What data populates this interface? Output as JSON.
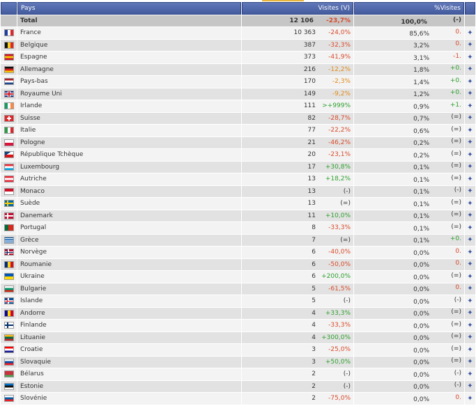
{
  "header": {
    "col_country": "Pays",
    "col_visits": "Visites (V)",
    "col_percent": "%Visites"
  },
  "total": {
    "label": "Total",
    "visits": "12 106",
    "evo": "-23,7%",
    "pct": "100,0%",
    "pct_evo": "(-)"
  },
  "rows": [
    {
      "country": "France",
      "visits": "10 363",
      "evo": "-24,0%",
      "evo_cls": "neg",
      "pct": "85,6%",
      "pct_evo": "0.",
      "pct_evo_cls": "neg",
      "flag": "france",
      "colors": [
        "#1d3fa0",
        "#ffffff",
        "#e0262b"
      ],
      "dir": "v"
    },
    {
      "country": "Belgique",
      "visits": "387",
      "evo": "-32,3%",
      "evo_cls": "neg",
      "pct": "3,2%",
      "pct_evo": "0.",
      "pct_evo_cls": "neg",
      "flag": "belgium",
      "colors": [
        "#111111",
        "#f4d21f",
        "#e0262b"
      ],
      "dir": "v"
    },
    {
      "country": "Espagne",
      "visits": "373",
      "evo": "-41,9%",
      "evo_cls": "neg",
      "pct": "3,1%",
      "pct_evo": "-1.",
      "pct_evo_cls": "neg",
      "flag": "spain",
      "colors": [
        "#c8102e",
        "#f7c300",
        "#c8102e"
      ],
      "dir": "h"
    },
    {
      "country": "Allemagne",
      "visits": "216",
      "evo": "-12,2%",
      "evo_cls": "warn",
      "pct": "1,8%",
      "pct_evo": "+0.",
      "pct_evo_cls": "pos",
      "flag": "germany",
      "colors": [
        "#111111",
        "#dd1f1f",
        "#f6c700"
      ],
      "dir": "h"
    },
    {
      "country": "Pays-bas",
      "visits": "170",
      "evo": "-2,3%",
      "evo_cls": "warn",
      "pct": "1,4%",
      "pct_evo": "+0.",
      "pct_evo_cls": "pos",
      "flag": "netherlands",
      "colors": [
        "#ae1c28",
        "#ffffff",
        "#21468b"
      ],
      "dir": "h"
    },
    {
      "country": "Royaume Uni",
      "visits": "149",
      "evo": "-9,2%",
      "evo_cls": "warn",
      "pct": "1,2%",
      "pct_evo": "+0.",
      "pct_evo_cls": "pos",
      "flag": "united-kingdom",
      "colors": [
        "#1e3a8a",
        "#ffffff",
        "#cc1b2b"
      ],
      "dir": "uk"
    },
    {
      "country": "Irlande",
      "visits": "111",
      "evo": ">+999%",
      "evo_cls": "pos",
      "pct": "0,9%",
      "pct_evo": "+1.",
      "pct_evo_cls": "pos",
      "flag": "ireland",
      "colors": [
        "#169b62",
        "#ffffff",
        "#ff883e"
      ],
      "dir": "v"
    },
    {
      "country": "Suisse",
      "visits": "82",
      "evo": "-28,7%",
      "evo_cls": "neg",
      "pct": "0,7%",
      "pct_evo": "(=)",
      "pct_evo_cls": "neu",
      "flag": "switzerland",
      "colors": [
        "#e0262b",
        "#ffffff"
      ],
      "dir": "cross"
    },
    {
      "country": "Italie",
      "visits": "77",
      "evo": "-22,2%",
      "evo_cls": "neg",
      "pct": "0,6%",
      "pct_evo": "(=)",
      "pct_evo_cls": "neu",
      "flag": "italy",
      "colors": [
        "#2f9a45",
        "#ffffff",
        "#d9272e"
      ],
      "dir": "v"
    },
    {
      "country": "Pologne",
      "visits": "21",
      "evo": "-46,2%",
      "evo_cls": "neg",
      "pct": "0,2%",
      "pct_evo": "(=)",
      "pct_evo_cls": "neu",
      "flag": "poland",
      "colors": [
        "#ffffff",
        "#dc143c"
      ],
      "dir": "h2"
    },
    {
      "country": "République Tchèque",
      "visits": "20",
      "evo": "-23,1%",
      "evo_cls": "neg",
      "pct": "0,2%",
      "pct_evo": "(=)",
      "pct_evo_cls": "neu",
      "flag": "czech-republic",
      "colors": [
        "#ffffff",
        "#d7141a",
        "#11457e"
      ],
      "dir": "cz"
    },
    {
      "country": "Luxembourg",
      "visits": "17",
      "evo": "+30,8%",
      "evo_cls": "pos",
      "pct": "0,1%",
      "pct_evo": "(=)",
      "pct_evo_cls": "neu",
      "flag": "luxembourg",
      "colors": [
        "#ed2939",
        "#ffffff",
        "#00a1de"
      ],
      "dir": "h"
    },
    {
      "country": "Autriche",
      "visits": "13",
      "evo": "+18,2%",
      "evo_cls": "pos",
      "pct": "0,1%",
      "pct_evo": "(=)",
      "pct_evo_cls": "neu",
      "flag": "austria",
      "colors": [
        "#ed2939",
        "#ffffff",
        "#ed2939"
      ],
      "dir": "h"
    },
    {
      "country": "Monaco",
      "visits": "13",
      "evo": "(-)",
      "evo_cls": "neu",
      "pct": "0,1%",
      "pct_evo": "(-)",
      "pct_evo_cls": "neu",
      "flag": "monaco",
      "colors": [
        "#ce1126",
        "#ffffff"
      ],
      "dir": "h2"
    },
    {
      "country": "Suède",
      "visits": "13",
      "evo": "(=)",
      "evo_cls": "neu",
      "pct": "0,1%",
      "pct_evo": "(=)",
      "pct_evo_cls": "neu",
      "flag": "sweden",
      "colors": [
        "#006aa7",
        "#fecc00"
      ],
      "dir": "nordic"
    },
    {
      "country": "Danemark",
      "visits": "11",
      "evo": "+10,0%",
      "evo_cls": "pos",
      "pct": "0,1%",
      "pct_evo": "(=)",
      "pct_evo_cls": "neu",
      "flag": "denmark",
      "colors": [
        "#c60c30",
        "#ffffff"
      ],
      "dir": "nordic"
    },
    {
      "country": "Portugal",
      "visits": "8",
      "evo": "-33,3%",
      "evo_cls": "neg",
      "pct": "0,1%",
      "pct_evo": "(=)",
      "pct_evo_cls": "neu",
      "flag": "portugal",
      "colors": [
        "#046a38",
        "#da291c"
      ],
      "dir": "pt"
    },
    {
      "country": "Grèce",
      "visits": "7",
      "evo": "(=)",
      "evo_cls": "neu",
      "pct": "0,1%",
      "pct_evo": "+0.",
      "pct_evo_cls": "pos",
      "flag": "greece",
      "colors": [
        "#0d5eaf",
        "#ffffff"
      ],
      "dir": "gr"
    },
    {
      "country": "Norvège",
      "visits": "6",
      "evo": "-40,0%",
      "evo_cls": "neg",
      "pct": "0,0%",
      "pct_evo": "0.",
      "pct_evo_cls": "neg",
      "flag": "norway",
      "colors": [
        "#ba0c2f",
        "#ffffff",
        "#00205b"
      ],
      "dir": "nordic3"
    },
    {
      "country": "Roumanie",
      "visits": "6",
      "evo": "-50,0%",
      "evo_cls": "neg",
      "pct": "0,0%",
      "pct_evo": "0.",
      "pct_evo_cls": "neg",
      "flag": "romania",
      "colors": [
        "#002b7f",
        "#fcd116",
        "#ce1126"
      ],
      "dir": "v"
    },
    {
      "country": "Ukraine",
      "visits": "6",
      "evo": "+200,0%",
      "evo_cls": "pos",
      "pct": "0,0%",
      "pct_evo": "(=)",
      "pct_evo_cls": "neu",
      "flag": "ukraine",
      "colors": [
        "#0057b7",
        "#ffd700"
      ],
      "dir": "h2"
    },
    {
      "country": "Bulgarie",
      "visits": "5",
      "evo": "-61,5%",
      "evo_cls": "neg",
      "pct": "0,0%",
      "pct_evo": "0.",
      "pct_evo_cls": "neg",
      "flag": "bulgaria",
      "colors": [
        "#ffffff",
        "#00966e",
        "#d62612"
      ],
      "dir": "h"
    },
    {
      "country": "Islande",
      "visits": "5",
      "evo": "(-)",
      "evo_cls": "neu",
      "pct": "0,0%",
      "pct_evo": "(-)",
      "pct_evo_cls": "neu",
      "flag": "iceland",
      "colors": [
        "#02529c",
        "#ffffff",
        "#dc1e35"
      ],
      "dir": "nordic3"
    },
    {
      "country": "Andorre",
      "visits": "4",
      "evo": "+33,3%",
      "evo_cls": "pos",
      "pct": "0,0%",
      "pct_evo": "(=)",
      "pct_evo_cls": "neu",
      "flag": "andorra",
      "colors": [
        "#10069f",
        "#fedd00",
        "#d50032"
      ],
      "dir": "v"
    },
    {
      "country": "Finlande",
      "visits": "4",
      "evo": "-33,3%",
      "evo_cls": "neg",
      "pct": "0,0%",
      "pct_evo": "(=)",
      "pct_evo_cls": "neu",
      "flag": "finland",
      "colors": [
        "#ffffff",
        "#002f6c"
      ],
      "dir": "nordic"
    },
    {
      "country": "Lituanie",
      "visits": "4",
      "evo": "+300,0%",
      "evo_cls": "pos",
      "pct": "0,0%",
      "pct_evo": "(=)",
      "pct_evo_cls": "neu",
      "flag": "lithuania",
      "colors": [
        "#fdb913",
        "#006a44",
        "#c1272d"
      ],
      "dir": "h"
    },
    {
      "country": "Croatie",
      "visits": "3",
      "evo": "-25,0%",
      "evo_cls": "neg",
      "pct": "0,0%",
      "pct_evo": "(=)",
      "pct_evo_cls": "neu",
      "flag": "croatia",
      "colors": [
        "#ff0000",
        "#ffffff",
        "#171796"
      ],
      "dir": "h"
    },
    {
      "country": "Slovaquie",
      "visits": "3",
      "evo": "+50,0%",
      "evo_cls": "pos",
      "pct": "0,0%",
      "pct_evo": "(=)",
      "pct_evo_cls": "neu",
      "flag": "slovakia",
      "colors": [
        "#ffffff",
        "#0b4ea2",
        "#ee1c25"
      ],
      "dir": "h"
    },
    {
      "country": "Bélarus",
      "visits": "2",
      "evo": "(-)",
      "evo_cls": "neu",
      "pct": "0,0%",
      "pct_evo": "(-)",
      "pct_evo_cls": "neu",
      "flag": "belarus",
      "colors": [
        "#c8313e",
        "#4aa657"
      ],
      "dir": "by"
    },
    {
      "country": "Estonie",
      "visits": "2",
      "evo": "(-)",
      "evo_cls": "neu",
      "pct": "0,0%",
      "pct_evo": "(-)",
      "pct_evo_cls": "neu",
      "flag": "estonia",
      "colors": [
        "#0072ce",
        "#111111",
        "#ffffff"
      ],
      "dir": "h"
    },
    {
      "country": "Slovénie",
      "visits": "2",
      "evo": "-75,0%",
      "evo_cls": "neg",
      "pct": "0,0%",
      "pct_evo": "0.",
      "pct_evo_cls": "neg",
      "flag": "slovenia",
      "colors": [
        "#ffffff",
        "#005da4",
        "#ed1c24"
      ],
      "dir": "h"
    }
  ]
}
